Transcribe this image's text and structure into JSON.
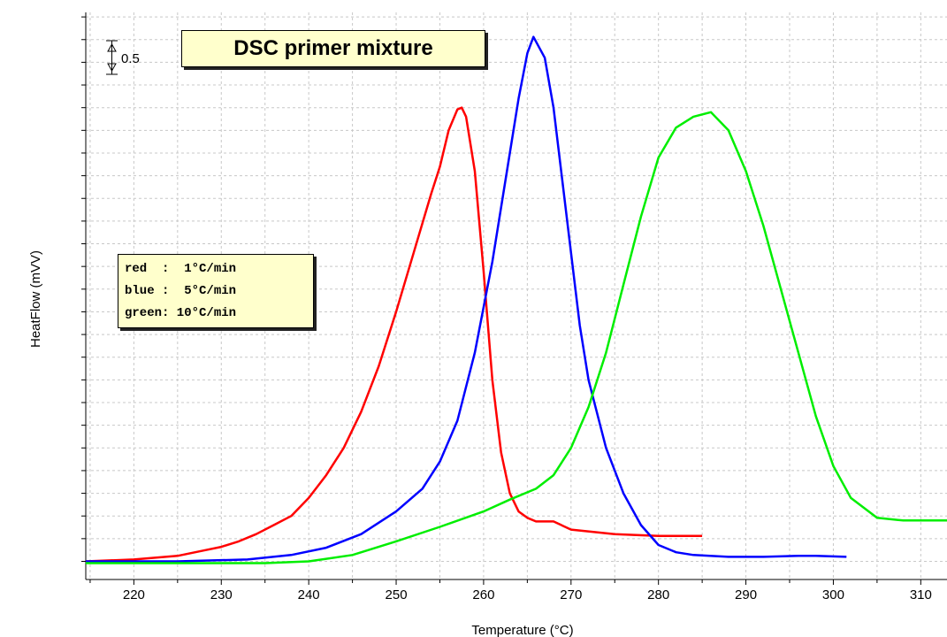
{
  "chart_data": {
    "type": "line",
    "title": "DSC primer mixture",
    "xlabel": "Temperature (°C)",
    "ylabel": "HeatFlow (mVV)",
    "xlim": [
      214.5,
      313
    ],
    "xticks": [
      220,
      230,
      240,
      250,
      260,
      270,
      280,
      290,
      300,
      310
    ],
    "ylim": [
      -0.2,
      6.05
    ],
    "y_tick_labels_shown": false,
    "scale_bar_label": "0.5",
    "grid": true,
    "legend": {
      "placement": "left-middle",
      "entries": [
        "red  :  1°C/min",
        "blue :  5°C/min",
        "green: 10°C/min"
      ]
    },
    "series": [
      {
        "name": "red",
        "color": "#ff0000",
        "x": [
          214.5,
          220,
          225,
          228,
          230,
          232,
          234,
          236,
          238,
          240,
          242,
          244,
          246,
          248,
          250,
          252,
          254,
          255,
          256,
          257,
          257.5,
          258,
          259,
          260,
          261,
          262,
          263,
          264,
          265,
          266,
          268,
          270,
          275,
          280,
          285
        ],
        "y": [
          0.0,
          0.02,
          0.06,
          0.12,
          0.16,
          0.22,
          0.3,
          0.4,
          0.5,
          0.7,
          0.95,
          1.25,
          1.65,
          2.15,
          2.75,
          3.4,
          4.05,
          4.35,
          4.75,
          4.98,
          5.0,
          4.9,
          4.3,
          3.2,
          2.0,
          1.2,
          0.75,
          0.55,
          0.48,
          0.44,
          0.44,
          0.35,
          0.3,
          0.28,
          0.28
        ]
      },
      {
        "name": "blue",
        "color": "#0000ff",
        "x": [
          214.5,
          225,
          233,
          238,
          242,
          246,
          250,
          253,
          255,
          257,
          259,
          261,
          262,
          263,
          264,
          265,
          265.7,
          267,
          268,
          269,
          270,
          271,
          272,
          274,
          276,
          278,
          280,
          282,
          284,
          288,
          292,
          296,
          298,
          301.5
        ],
        "y": [
          0.0,
          0.0,
          0.02,
          0.07,
          0.15,
          0.3,
          0.55,
          0.8,
          1.1,
          1.55,
          2.3,
          3.3,
          3.9,
          4.5,
          5.1,
          5.6,
          5.78,
          5.55,
          5.0,
          4.2,
          3.4,
          2.6,
          2.0,
          1.25,
          0.75,
          0.4,
          0.18,
          0.1,
          0.07,
          0.05,
          0.05,
          0.06,
          0.06,
          0.05
        ]
      },
      {
        "name": "green",
        "color": "#00ee00",
        "x": [
          214.5,
          225,
          230,
          235,
          240,
          245,
          250,
          255,
          260,
          263,
          266,
          268,
          270,
          272,
          274,
          276,
          278,
          280,
          282,
          284,
          286,
          288,
          290,
          292,
          294,
          296,
          298,
          300,
          302,
          305,
          308,
          313
        ],
        "y": [
          -0.02,
          -0.02,
          -0.02,
          -0.02,
          0.0,
          0.07,
          0.22,
          0.38,
          0.55,
          0.68,
          0.8,
          0.95,
          1.25,
          1.7,
          2.3,
          3.05,
          3.8,
          4.45,
          4.78,
          4.9,
          4.95,
          4.75,
          4.3,
          3.7,
          3.0,
          2.3,
          1.6,
          1.05,
          0.7,
          0.48,
          0.45,
          0.45
        ]
      }
    ]
  }
}
